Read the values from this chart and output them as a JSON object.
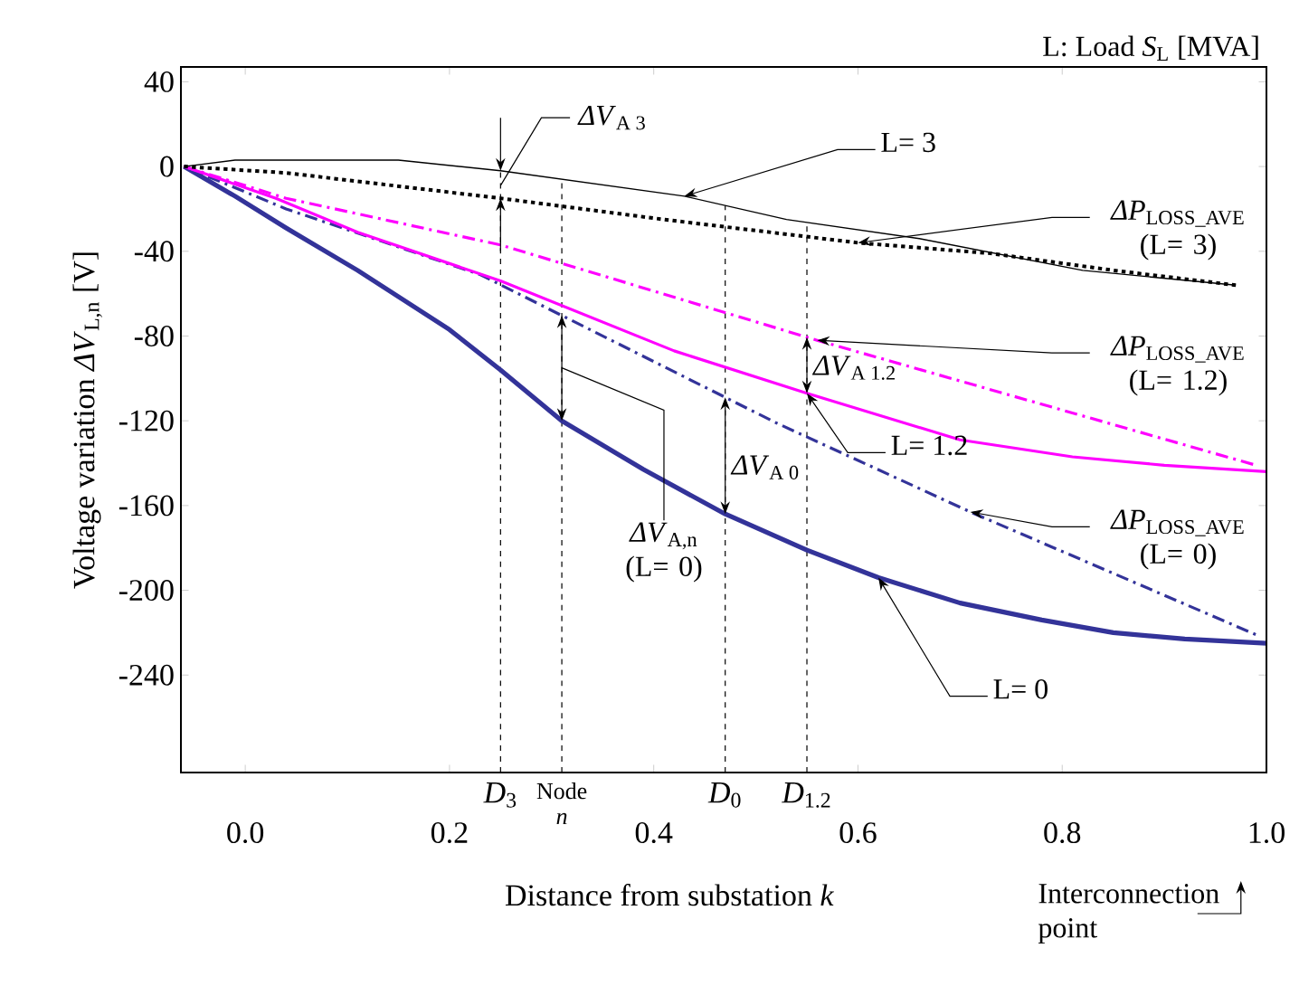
{
  "chart_data": {
    "type": "line",
    "xlabel": "Distance from substation *k*",
    "ylabel": "Voltage variation *ΔV*$_{L,n}$ [V]",
    "xlim": [
      -0.063,
      1.0
    ],
    "ylim": [
      -286,
      47
    ],
    "xticks": [
      {
        "value": 0,
        "label": "0.0"
      },
      {
        "value": 0.2,
        "label": "0.2"
      },
      {
        "value": 0.4,
        "label": "0.4"
      },
      {
        "value": 0.6,
        "label": "0.6"
      },
      {
        "value": 0.8,
        "label": "0.8"
      },
      {
        "value": 1.0,
        "label": "1.0"
      }
    ],
    "yticks": [
      -240,
      -200,
      -160,
      -120,
      -80,
      -40,
      0,
      40
    ],
    "marker": "none",
    "series": [
      {
        "name": "L= 0",
        "color": "#333399",
        "line_style": "solid",
        "x": [
          -0.06,
          -0.01,
          0.04,
          0.11,
          0.2,
          0.25,
          0.31,
          0.39,
          0.47,
          0.55,
          0.62,
          0.7,
          0.78,
          0.85,
          0.92,
          1.0
        ],
        "values": [
          0,
          -14,
          -29,
          -49,
          -77,
          -96,
          -120,
          -143,
          -164,
          -181,
          -194,
          -206,
          -214,
          -220,
          -223,
          -225
        ]
      },
      {
        "name": "*ΔP*$_{LOSS_AVE}$ (L= 0)",
        "color": "#333399",
        "line_style": "dashdot",
        "x": [
          -0.06,
          0.04,
          0.23,
          0.52,
          0.71,
          0.99
        ],
        "values": [
          0,
          -20,
          -51,
          -121,
          -163,
          -221
        ]
      },
      {
        "name": "L= 1.2",
        "color": "#ff00ff",
        "line_style": "solid",
        "x": [
          -0.06,
          0.03,
          0.11,
          0.25,
          0.42,
          0.55,
          0.7,
          0.81,
          0.9,
          1.0
        ],
        "values": [
          0,
          -15,
          -31,
          -54,
          -87,
          -107,
          -129,
          -137,
          -141,
          -144
        ]
      },
      {
        "name": "*ΔP*$_{LOSS_AVE}$ (L= 1.2)",
        "color": "#ff00ff",
        "line_style": "dashdot",
        "x": [
          -0.06,
          0.04,
          0.25,
          0.56,
          0.99
        ],
        "values": [
          0,
          -15,
          -37,
          -82,
          -141
        ]
      },
      {
        "name": "L= 3",
        "color": "#000000",
        "line_style": "solid",
        "x": [
          -0.06,
          -0.01,
          0.05,
          0.15,
          0.25,
          0.43,
          0.53,
          0.66,
          0.82,
          0.97
        ],
        "values": [
          0,
          3,
          3,
          3,
          -2,
          -14,
          -25,
          -34,
          -49,
          -56
        ]
      },
      {
        "name": "*ΔP*$_{LOSS_AVE}$ (L= 3)",
        "color": "#000000",
        "line_style": "dotted",
        "x": [
          -0.06,
          0.04,
          0.25,
          0.41,
          0.6,
          0.73,
          0.85,
          0.97
        ],
        "values": [
          0,
          -3,
          -15,
          -25,
          -36,
          -41,
          -49,
          -56
        ]
      }
    ],
    "ref_lines": [
      {
        "axis": "x",
        "value": 0.25,
        "label": "*D*$_{3}$",
        "line_style": "dashed"
      },
      {
        "axis": "x",
        "value": 0.31,
        "label": "Node *n*",
        "line_style": "dashed"
      },
      {
        "axis": "x",
        "value": 0.47,
        "label": "*D*$_{0}$",
        "line_style": "dashed"
      },
      {
        "axis": "x",
        "value": 0.55,
        "label": "*D*$_{1.2}$",
        "line_style": "dashed"
      }
    ],
    "annotations": [
      "L: Load *S*$_{L}$ [MVA]",
      {
        "text": "*ΔV*$_{A 3}$",
        "x": 0.25,
        "y": -9
      },
      {
        "text": "*ΔV*$_{A 1.2}$",
        "x": 0.55,
        "y": -95
      },
      {
        "text": "*ΔV*$_{A 0}$",
        "x": 0.47,
        "y": -142
      },
      {
        "text": "*ΔV*$_{A,n}$ (L= 0)",
        "x": 0.31,
        "y": -95
      },
      "Interconnection point"
    ]
  }
}
